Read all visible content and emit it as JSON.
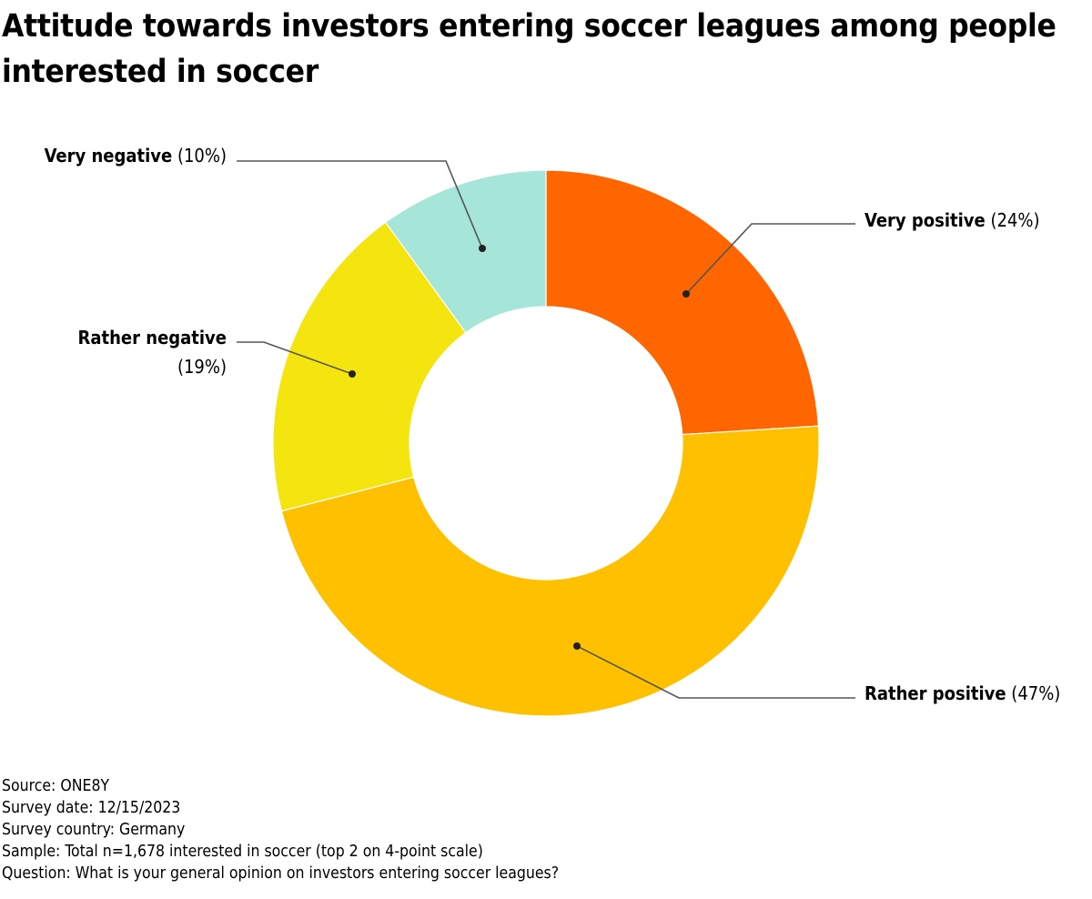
{
  "title": "Attitude towards investors entering soccer leagues among people interested in soccer",
  "chart_data": {
    "type": "pie",
    "subtype": "donut",
    "title": "Attitude towards investors entering soccer leagues among people interested in soccer",
    "slices": [
      {
        "label": "Very positive",
        "value": 24,
        "display": "(24%)",
        "color": "#FF6600"
      },
      {
        "label": "Rather positive",
        "value": 47,
        "display": "(47%)",
        "color": "#FFC000"
      },
      {
        "label": "Rather negative",
        "value": 19,
        "display": "(19%)",
        "color": "#F5E50F"
      },
      {
        "label": "Very negative",
        "value": 10,
        "display": "(10%)",
        "color": "#A5E6D8"
      }
    ],
    "unit": "%",
    "legend": "none (direct labels)"
  },
  "footer": {
    "source": "Source: ONE8Y",
    "date": "Survey date: 12/15/2023",
    "country": "Survey country: Germany",
    "sample": "Sample: Total n=1,678 interested in soccer (top 2 on 4-point scale)",
    "question": "Question: What is your general opinion on investors entering soccer leagues?"
  }
}
